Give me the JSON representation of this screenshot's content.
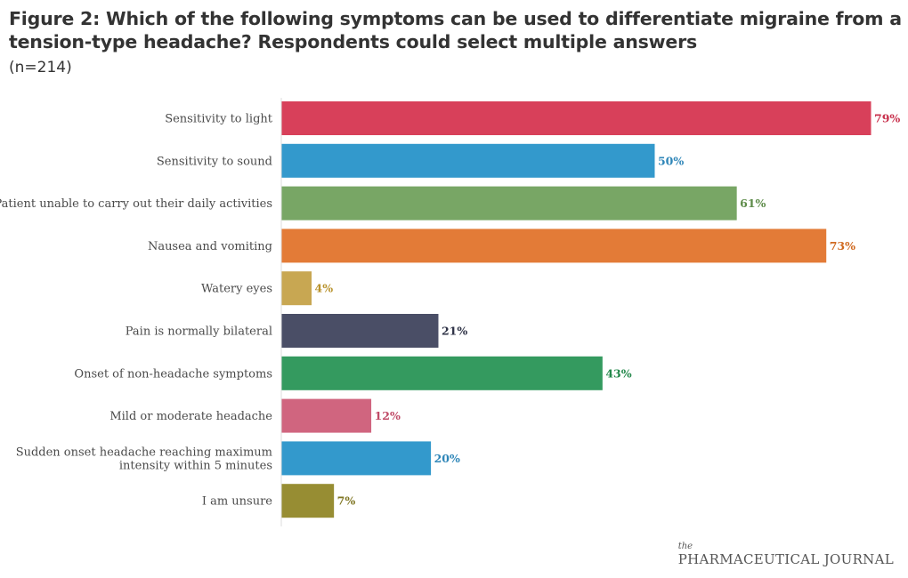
{
  "header": {
    "title": "Figure 2: Which of the following symptoms can be used to differentiate migraine from a tension-type headache? Respondents could select multiple answers",
    "subtitle": "(n=214)"
  },
  "branding": {
    "logo_the": "the",
    "logo_name": "PHARMACEUTICAL JOURNAL"
  },
  "chart_data": {
    "type": "bar",
    "orientation": "horizontal",
    "title": "Figure 2: Which of the following symptoms can be used to differentiate migraine from a tension-type headache? Respondents could select multiple answers",
    "subtitle": "(n=214)",
    "xlabel": "",
    "ylabel": "",
    "xlim": [
      0,
      79
    ],
    "grid": false,
    "value_suffix": "%",
    "categories": [
      [
        "Sensitivity to light"
      ],
      [
        "Sensitivity to sound"
      ],
      [
        "Patient unable to carry out their daily activities"
      ],
      [
        "Nausea and vomiting"
      ],
      [
        "Watery eyes"
      ],
      [
        "Pain is normally bilateral"
      ],
      [
        "Onset of non-headache symptoms"
      ],
      [
        "Mild or moderate headache"
      ],
      [
        "Sudden onset headache reaching maximum",
        "intensity within 5 minutes"
      ],
      [
        "I am unsure"
      ]
    ],
    "values": [
      79,
      50,
      61,
      73,
      4,
      21,
      43,
      12,
      20,
      7
    ],
    "bar_colors": [
      "#d8405a",
      "#3399cc",
      "#78a665",
      "#e37b37",
      "#c8a752",
      "#4a4e66",
      "#349a5f",
      "#d0657f",
      "#3399cc",
      "#978d33"
    ],
    "label_colors": [
      "#c8304c",
      "#2f86b8",
      "#5e8c4a",
      "#d0691f",
      "#b8922c",
      "#2e3246",
      "#24884b",
      "#c04b67",
      "#2f86b8",
      "#7f7623"
    ]
  }
}
